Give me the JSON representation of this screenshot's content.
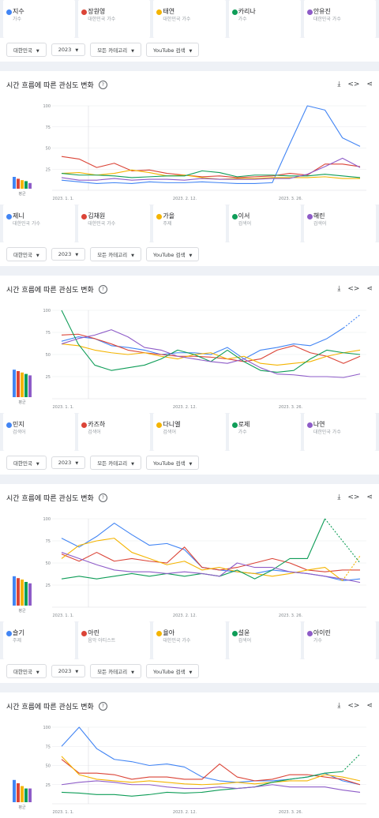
{
  "sections": [
    {
      "header": null,
      "terms": [
        {
          "name": "지수",
          "category": "가수",
          "color": "#4285f4"
        },
        {
          "name": "장원영",
          "category": "대한민국 가수",
          "color": "#db4437"
        },
        {
          "name": "태연",
          "category": "대한민국 가수",
          "color": "#f4b400"
        },
        {
          "name": "카리나",
          "category": "가수",
          "color": "#0f9d58"
        },
        {
          "name": "안유진",
          "category": "대한민국 가수",
          "color": "#8e5cc8"
        }
      ],
      "filters": [
        "대한민국",
        "2023",
        "모든 카테고리",
        "YouTube 검색"
      ]
    },
    {
      "header": "시간 흐름에 따른 관심도 변화",
      "terms": [
        {
          "name": "제니",
          "category": "대한민국 가수",
          "color": "#4285f4"
        },
        {
          "name": "김채원",
          "category": "대한민국 가수",
          "color": "#db4437"
        },
        {
          "name": "가을",
          "category": "주제",
          "color": "#f4b400"
        },
        {
          "name": "이서",
          "category": "검색어",
          "color": "#0f9d58"
        },
        {
          "name": "해린",
          "category": "검색어",
          "color": "#8e5cc8"
        }
      ],
      "filters": [
        "대한민국",
        "2023",
        "모든 카테고리",
        "YouTube 검색"
      ]
    },
    {
      "header": "시간 흐름에 따른 관심도 변화",
      "terms": [
        {
          "name": "민지",
          "category": "검색어",
          "color": "#4285f4"
        },
        {
          "name": "카즈하",
          "category": "검색어",
          "color": "#db4437"
        },
        {
          "name": "다니엘",
          "category": "검색어",
          "color": "#f4b400"
        },
        {
          "name": "로제",
          "category": "가수",
          "color": "#0f9d58"
        },
        {
          "name": "나연",
          "category": "대한민국 가수",
          "color": "#8e5cc8"
        }
      ],
      "filters": [
        "대한민국",
        "2023",
        "모든 카테고리",
        "YouTube 검색"
      ]
    },
    {
      "header": "시간 흐름에 따른 관심도 변화",
      "terms": [
        {
          "name": "슬기",
          "category": "주제",
          "color": "#4285f4"
        },
        {
          "name": "아린",
          "category": "음악 아티스트",
          "color": "#db4437"
        },
        {
          "name": "율아",
          "category": "대한민국 가수",
          "color": "#f4b400"
        },
        {
          "name": "설윤",
          "category": "검색어",
          "color": "#0f9d58"
        },
        {
          "name": "아이린",
          "category": "가수",
          "color": "#8e5cc8"
        }
      ],
      "filters": [
        "대한민국",
        "2023",
        "모든 카테고리",
        "YouTube 검색"
      ]
    },
    {
      "header": "시간 흐름에 따른 관심도 변화",
      "terms": [],
      "filters": []
    }
  ],
  "actions": {
    "download_icon": "download-icon",
    "embed_icon": "code-icon",
    "share_icon": "share-icon"
  },
  "chart_data": [
    {
      "type": "line",
      "x_ticks": [
        "2023. 1. 1.",
        "2023. 2. 12.",
        "2023. 3. 26."
      ],
      "y_ticks": [
        25,
        50,
        75,
        100
      ],
      "ylim": [
        0,
        100
      ],
      "average_label": "평균",
      "averages": [
        25,
        21,
        18,
        16,
        12
      ],
      "series": [
        {
          "name": "제니",
          "color": "#4285f4",
          "values": [
            12,
            10,
            8,
            9,
            8,
            10,
            9,
            9,
            10,
            9,
            8,
            8,
            9,
            55,
            100,
            95,
            62,
            52
          ]
        },
        {
          "name": "김채원",
          "color": "#db4437",
          "values": [
            40,
            37,
            27,
            32,
            23,
            24,
            20,
            18,
            16,
            17,
            15,
            16,
            17,
            20,
            18,
            31,
            31,
            28
          ]
        },
        {
          "name": "가을",
          "color": "#f4b400",
          "values": [
            20,
            21,
            18,
            20,
            24,
            21,
            17,
            18,
            15,
            13,
            14,
            14,
            15,
            15,
            15,
            16,
            14,
            14
          ]
        },
        {
          "name": "이서",
          "color": "#0f9d58",
          "values": [
            20,
            18,
            18,
            17,
            15,
            16,
            17,
            17,
            23,
            21,
            16,
            18,
            18,
            17,
            17,
            19,
            17,
            15
          ]
        },
        {
          "name": "해린",
          "color": "#8e5cc8",
          "values": [
            15,
            12,
            12,
            14,
            12,
            13,
            13,
            12,
            14,
            13,
            13,
            13,
            14,
            14,
            19,
            28,
            38,
            27
          ]
        }
      ]
    },
    {
      "type": "line",
      "x_ticks": [
        "2023. 1. 1.",
        "2023. 2. 12.",
        "2023. 3. 26."
      ],
      "y_ticks": [
        25,
        50,
        75,
        100
      ],
      "ylim": [
        0,
        100
      ],
      "average_label": "평균",
      "averages": [
        58,
        55,
        52,
        49,
        46
      ],
      "series": [
        {
          "name": "민지",
          "color": "#4285f4",
          "values": [
            65,
            70,
            68,
            60,
            58,
            55,
            50,
            52,
            52,
            50,
            58,
            45,
            55,
            58,
            62,
            60,
            68,
            80,
            95
          ],
          "dashed_from": 17
        },
        {
          "name": "카즈하",
          "color": "#db4437",
          "values": [
            72,
            73,
            68,
            62,
            55,
            52,
            50,
            48,
            48,
            47,
            45,
            42,
            45,
            55,
            60,
            52,
            48,
            40,
            48
          ]
        },
        {
          "name": "다니엘",
          "color": "#f4b400",
          "values": [
            62,
            60,
            55,
            52,
            50,
            52,
            48,
            45,
            50,
            52,
            45,
            48,
            40,
            38,
            40,
            42,
            48,
            52,
            55
          ]
        },
        {
          "name": "로제",
          "color": "#0f9d58",
          "values": [
            100,
            62,
            38,
            32,
            35,
            38,
            45,
            55,
            50,
            42,
            55,
            42,
            32,
            30,
            32,
            45,
            55,
            52,
            50
          ]
        },
        {
          "name": "나연",
          "color": "#8e5cc8",
          "values": [
            62,
            68,
            72,
            78,
            70,
            58,
            55,
            48,
            45,
            42,
            40,
            45,
            35,
            28,
            27,
            25,
            25,
            24,
            28
          ]
        }
      ]
    },
    {
      "type": "line",
      "x_ticks": [
        "2023. 1. 1.",
        "2023. 2. 12.",
        "2023. 3. 26."
      ],
      "y_ticks": [
        25,
        50,
        75,
        100
      ],
      "ylim": [
        0,
        100
      ],
      "average_label": "평균",
      "averages": [
        62,
        58,
        55,
        50,
        47
      ],
      "series": [
        {
          "name": "슬기",
          "color": "#4285f4",
          "values": [
            78,
            68,
            80,
            95,
            82,
            70,
            72,
            65,
            45,
            42,
            40,
            38,
            42,
            40,
            38,
            35,
            30,
            32
          ]
        },
        {
          "name": "아린",
          "color": "#db4437",
          "values": [
            60,
            52,
            62,
            52,
            55,
            52,
            50,
            68,
            45,
            42,
            45,
            50,
            55,
            50,
            42,
            40,
            42,
            42
          ]
        },
        {
          "name": "율아",
          "color": "#f4b400",
          "values": [
            55,
            70,
            75,
            78,
            62,
            55,
            48,
            52,
            42,
            45,
            40,
            38,
            35,
            38,
            42,
            45,
            30,
            58
          ],
          "dashed_from": 16
        },
        {
          "name": "설윤",
          "color": "#0f9d58",
          "values": [
            32,
            35,
            32,
            35,
            38,
            35,
            38,
            35,
            38,
            35,
            42,
            32,
            42,
            55,
            55,
            100,
            75,
            50
          ],
          "dashed_from": 15
        },
        {
          "name": "아이린",
          "color": "#8e5cc8",
          "values": [
            62,
            55,
            48,
            42,
            40,
            40,
            38,
            40,
            38,
            35,
            50,
            45,
            45,
            40,
            38,
            35,
            32,
            28
          ]
        }
      ]
    },
    {
      "type": "line",
      "x_ticks": [
        "2023. 1. 1.",
        "2023. 2. 12.",
        "2023. 3. 26."
      ],
      "y_ticks": [
        25,
        50,
        75,
        100
      ],
      "ylim": [
        0,
        100
      ],
      "average_label": "평균",
      "averages": [
        47,
        40,
        34,
        29,
        29
      ],
      "series": [
        {
          "name": "슬기",
          "color": "#4285f4",
          "values": [
            75,
            100,
            72,
            58,
            55,
            50,
            52,
            48,
            35,
            30,
            28,
            30,
            30,
            32,
            35,
            40,
            30,
            25
          ]
        },
        {
          "name": "아린",
          "color": "#db4437",
          "values": [
            58,
            40,
            40,
            38,
            32,
            35,
            35,
            32,
            32,
            52,
            35,
            30,
            32,
            38,
            38,
            35,
            32,
            25
          ]
        },
        {
          "name": "율아",
          "color": "#f4b400",
          "values": [
            62,
            38,
            32,
            30,
            28,
            30,
            28,
            26,
            25,
            26,
            28,
            26,
            28,
            30,
            30,
            38,
            35,
            30
          ]
        },
        {
          "name": "설윤",
          "color": "#0f9d58",
          "values": [
            15,
            14,
            12,
            12,
            10,
            12,
            15,
            14,
            15,
            18,
            20,
            22,
            28,
            32,
            35,
            40,
            42,
            65
          ],
          "dashed_from": 16
        },
        {
          "name": "아이린",
          "color": "#8e5cc8",
          "values": [
            25,
            28,
            30,
            28,
            25,
            25,
            22,
            20,
            20,
            22,
            20,
            22,
            25,
            22,
            22,
            22,
            18,
            15
          ]
        }
      ]
    }
  ]
}
